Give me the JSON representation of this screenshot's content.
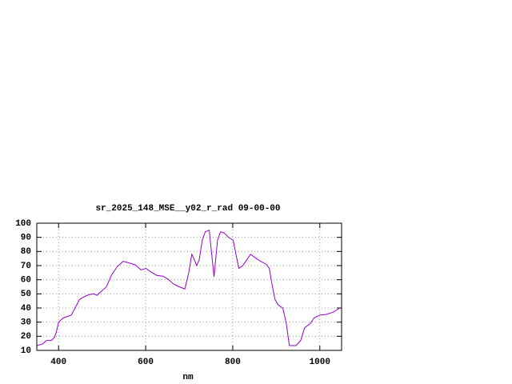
{
  "chart_data": {
    "type": "line",
    "title": "sr_2025_148_MSE__y02_r_rad 09-00-00",
    "x_label": "nm",
    "x": [
      350,
      363,
      372,
      383,
      390,
      395,
      400,
      411,
      420,
      429,
      438,
      448,
      459,
      470,
      481,
      488,
      499,
      510,
      521,
      534,
      548,
      561,
      576,
      589,
      601,
      612,
      626,
      640,
      653,
      664,
      677,
      690,
      699,
      706,
      712,
      717,
      723,
      730,
      737,
      746,
      752,
      757,
      765,
      772,
      781,
      790,
      801,
      808,
      814,
      823,
      832,
      841,
      852,
      864,
      877,
      884,
      890,
      897,
      905,
      915,
      923,
      930,
      945,
      956,
      965,
      978,
      987,
      1000,
      1015,
      1030,
      1046
    ],
    "series": [
      {
        "name": "sr_2025_148_MSE__y02_r_rad",
        "color": "#9400d3",
        "values": [
          13.4,
          14.5,
          17,
          17,
          19,
          23,
          30,
          33,
          34,
          35,
          40,
          46,
          48,
          49.5,
          50,
          49,
          52,
          55,
          63,
          69,
          73,
          72,
          70.5,
          67,
          68,
          65.5,
          63,
          62.5,
          60,
          57,
          55,
          53.5,
          65,
          78,
          74,
          70,
          74,
          88,
          94,
          95,
          77,
          62,
          88,
          94,
          93,
          90,
          88,
          77,
          68,
          70,
          74,
          78,
          75.5,
          73,
          71,
          68,
          57,
          46,
          42,
          40,
          29,
          13.4,
          13.4,
          17,
          26,
          29,
          33,
          35,
          35.5,
          37,
          40
        ]
      }
    ],
    "xlim": [
      350,
      1050
    ],
    "ylim": [
      10,
      100
    ],
    "xticks": [
      400,
      600,
      800,
      1000
    ],
    "yticks": [
      10,
      20,
      30,
      40,
      50,
      60,
      70,
      80,
      90,
      100
    ],
    "grid": true
  }
}
